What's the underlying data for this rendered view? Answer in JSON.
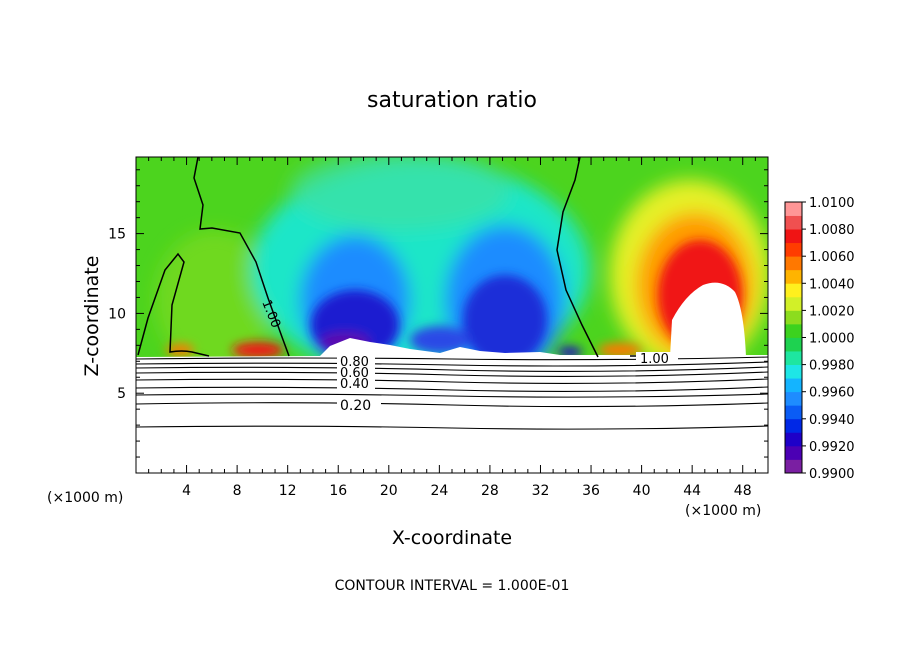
{
  "chart_data": {
    "type": "heatmap",
    "title": "saturation ratio",
    "xlabel": "X-coordinate",
    "ylabel": "Z-coordinate",
    "x_unit": "(×1000 m)",
    "xlim": [
      0,
      50
    ],
    "ylim": [
      0,
      19.8
    ],
    "x_ticks": [
      4,
      8,
      12,
      16,
      20,
      24,
      28,
      32,
      36,
      40,
      44,
      48
    ],
    "y_ticks": [
      5,
      10,
      15
    ],
    "colorbar": {
      "min": 0.99,
      "max": 1.01,
      "tick_labels": [
        "0.9900",
        "0.9920",
        "0.9940",
        "0.9960",
        "0.9980",
        "1.0000",
        "1.0020",
        "1.0040",
        "1.0060",
        "1.0080",
        "1.0100"
      ],
      "colors": [
        "#7a1fa2",
        "#4b00b4",
        "#1e00c8",
        "#0028e6",
        "#0a5cf5",
        "#1e8cff",
        "#14b4ff",
        "#1ee6e6",
        "#1ee6a0",
        "#1ed250",
        "#3cd21e",
        "#8cdc1e",
        "#d2f028",
        "#fff01e",
        "#ffb400",
        "#ff7800",
        "#ff3c00",
        "#f01414",
        "#f05050",
        "#ff9696"
      ]
    },
    "contour_interval": "CONTOUR INTERVAL = 1.000E-01",
    "contour_labels": [
      "1.00",
      "1.00",
      "0.80",
      "0.60",
      "0.40",
      "0.20"
    ],
    "field_regions": [
      {
        "feature": "background",
        "value": 0.9998
      },
      {
        "feature": "blue dip",
        "x": 18,
        "z": 9,
        "value": 0.9915
      },
      {
        "feature": "blue dip",
        "x": 27,
        "z": 10,
        "value": 0.993
      },
      {
        "feature": "red plume",
        "x": 44.5,
        "z": 12.5,
        "value": 1.0065
      },
      {
        "feature": "surface maxima",
        "x": 8.5,
        "z": 7.6,
        "value": 1.0055
      }
    ]
  }
}
